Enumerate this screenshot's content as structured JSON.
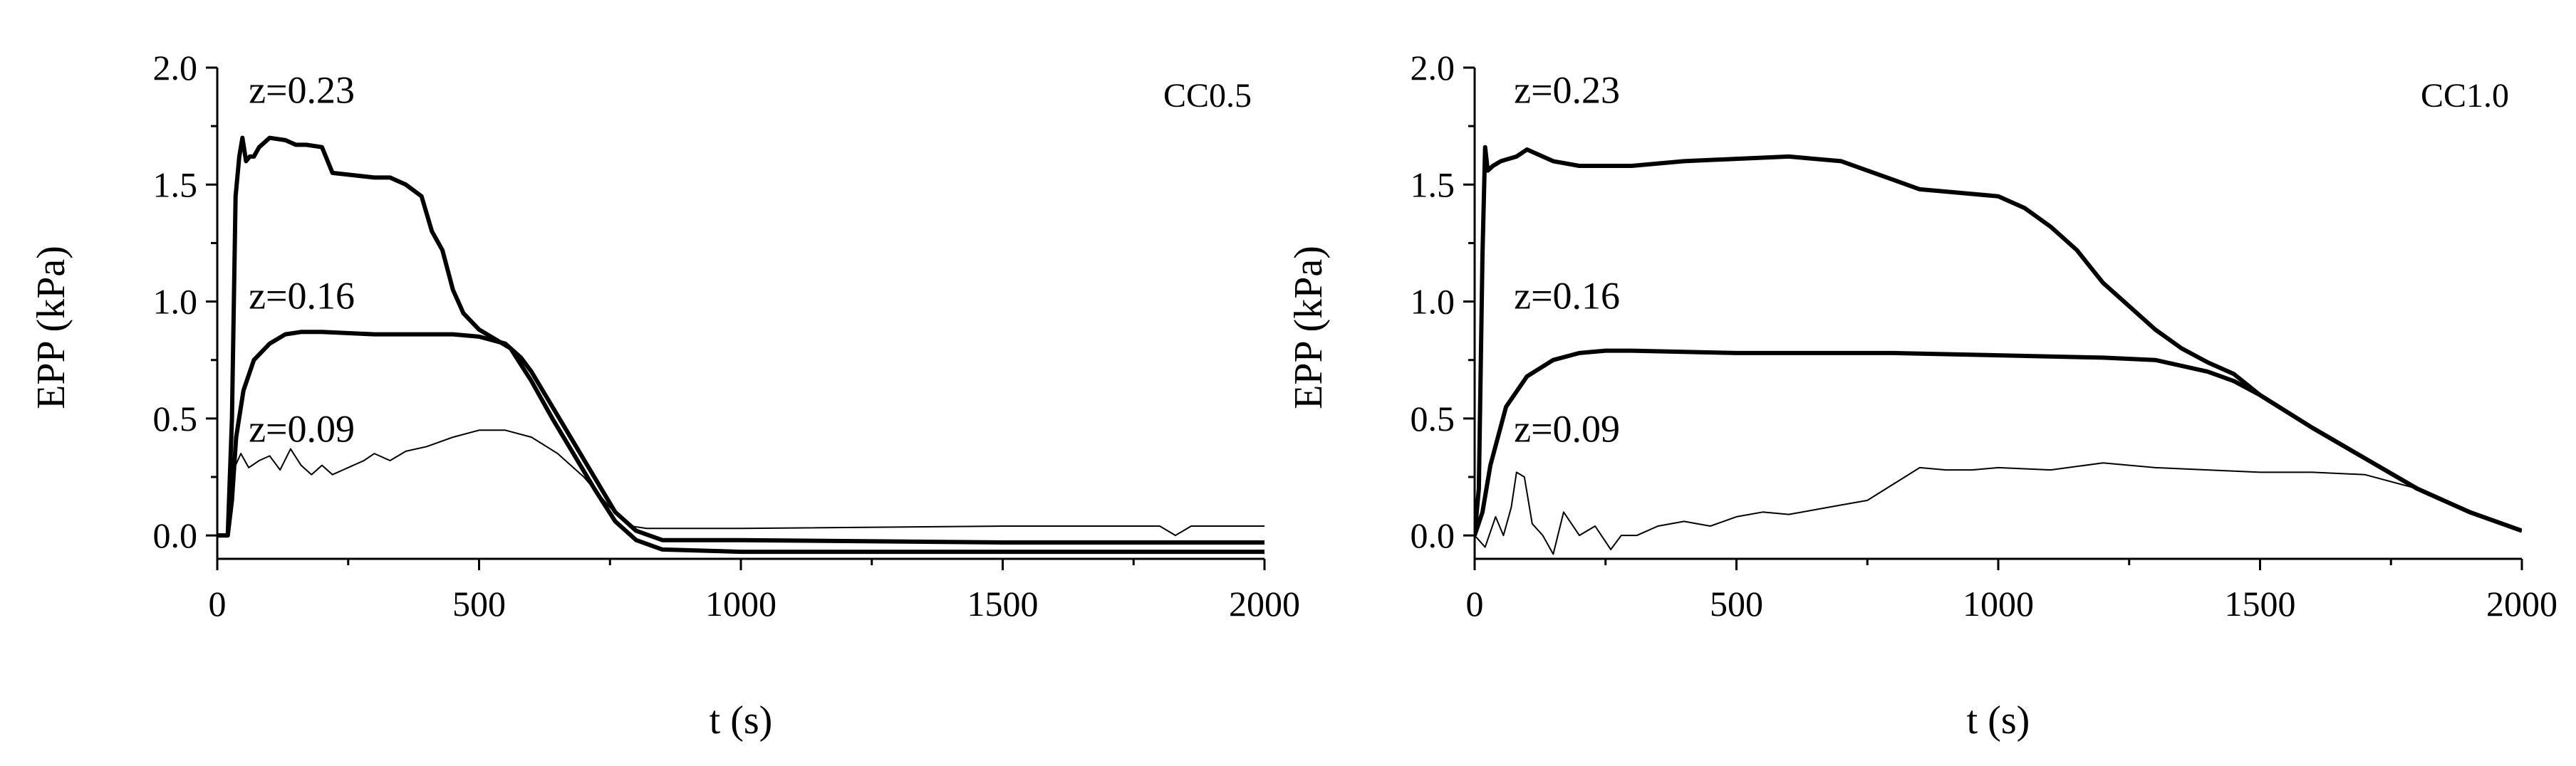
{
  "chart_data": [
    {
      "type": "line",
      "panel_label": "CC0.5",
      "xlabel": "t (s)",
      "ylabel": "EPP (kPa)",
      "xlim": [
        0,
        2000
      ],
      "ylim": [
        -0.1,
        2.0
      ],
      "xticks": [
        0,
        500,
        1000,
        1500,
        2000
      ],
      "xtick_labels": [
        "0",
        "500",
        "1000",
        "1500",
        "2000"
      ],
      "yticks": [
        0,
        0.5,
        1.0,
        1.5,
        2.0
      ],
      "ytick_labels": [
        "0.0",
        "0.5",
        "1.0",
        "1.5",
        "2.0"
      ],
      "grid": false,
      "series": [
        {
          "name": "z=0.23",
          "label_at": [
            60,
            1.85
          ],
          "points": [
            [
              0,
              0.0
            ],
            [
              20,
              0.0
            ],
            [
              28,
              0.5
            ],
            [
              35,
              1.45
            ],
            [
              42,
              1.62
            ],
            [
              48,
              1.7
            ],
            [
              55,
              1.6
            ],
            [
              62,
              1.62
            ],
            [
              70,
              1.62
            ],
            [
              80,
              1.66
            ],
            [
              100,
              1.7
            ],
            [
              130,
              1.69
            ],
            [
              150,
              1.67
            ],
            [
              170,
              1.67
            ],
            [
              200,
              1.66
            ],
            [
              220,
              1.55
            ],
            [
              260,
              1.54
            ],
            [
              300,
              1.53
            ],
            [
              330,
              1.53
            ],
            [
              360,
              1.5
            ],
            [
              390,
              1.45
            ],
            [
              410,
              1.3
            ],
            [
              430,
              1.22
            ],
            [
              450,
              1.05
            ],
            [
              470,
              0.95
            ],
            [
              500,
              0.88
            ],
            [
              530,
              0.84
            ],
            [
              560,
              0.8
            ],
            [
              600,
              0.66
            ],
            [
              640,
              0.5
            ],
            [
              680,
              0.35
            ],
            [
              720,
              0.2
            ],
            [
              760,
              0.06
            ],
            [
              800,
              -0.02
            ],
            [
              850,
              -0.06
            ],
            [
              1000,
              -0.07
            ],
            [
              1500,
              -0.07
            ],
            [
              2000,
              -0.07
            ]
          ]
        },
        {
          "name": "z=0.16",
          "label_at": [
            60,
            0.97
          ],
          "points": [
            [
              0,
              0.0
            ],
            [
              20,
              0.0
            ],
            [
              28,
              0.15
            ],
            [
              36,
              0.42
            ],
            [
              50,
              0.62
            ],
            [
              70,
              0.75
            ],
            [
              100,
              0.82
            ],
            [
              130,
              0.86
            ],
            [
              160,
              0.87
            ],
            [
              200,
              0.87
            ],
            [
              300,
              0.86
            ],
            [
              400,
              0.86
            ],
            [
              450,
              0.86
            ],
            [
              500,
              0.85
            ],
            [
              550,
              0.82
            ],
            [
              580,
              0.76
            ],
            [
              600,
              0.7
            ],
            [
              640,
              0.55
            ],
            [
              680,
              0.4
            ],
            [
              720,
              0.25
            ],
            [
              760,
              0.1
            ],
            [
              800,
              0.02
            ],
            [
              850,
              -0.02
            ],
            [
              1000,
              -0.02
            ],
            [
              1500,
              -0.03
            ],
            [
              2000,
              -0.03
            ]
          ]
        },
        {
          "name": "z=0.09",
          "label_at": [
            60,
            0.4
          ],
          "thin": true,
          "points": [
            [
              0,
              0.0
            ],
            [
              20,
              0.0
            ],
            [
              28,
              0.2
            ],
            [
              35,
              0.3
            ],
            [
              45,
              0.35
            ],
            [
              60,
              0.29
            ],
            [
              80,
              0.32
            ],
            [
              100,
              0.34
            ],
            [
              120,
              0.28
            ],
            [
              140,
              0.37
            ],
            [
              160,
              0.3
            ],
            [
              180,
              0.26
            ],
            [
              200,
              0.3
            ],
            [
              220,
              0.26
            ],
            [
              240,
              0.28
            ],
            [
              260,
              0.3
            ],
            [
              280,
              0.32
            ],
            [
              300,
              0.35
            ],
            [
              330,
              0.32
            ],
            [
              360,
              0.36
            ],
            [
              400,
              0.38
            ],
            [
              450,
              0.42
            ],
            [
              500,
              0.45
            ],
            [
              550,
              0.45
            ],
            [
              600,
              0.42
            ],
            [
              650,
              0.35
            ],
            [
              700,
              0.25
            ],
            [
              750,
              0.12
            ],
            [
              790,
              0.04
            ],
            [
              820,
              0.03
            ],
            [
              1000,
              0.03
            ],
            [
              1500,
              0.04
            ],
            [
              1800,
              0.04
            ],
            [
              1830,
              0.0
            ],
            [
              1860,
              0.04
            ],
            [
              2000,
              0.04
            ]
          ]
        }
      ]
    },
    {
      "type": "line",
      "panel_label": "CC1.0",
      "xlabel": "t (s)",
      "ylabel": "EPP (kPa)",
      "xlim": [
        0,
        2000
      ],
      "ylim": [
        -0.1,
        2.0
      ],
      "xticks": [
        0,
        500,
        1000,
        1500,
        2000
      ],
      "xtick_labels": [
        "0",
        "500",
        "1000",
        "1500",
        "2000"
      ],
      "yticks": [
        0,
        0.5,
        1.0,
        1.5,
        2.0
      ],
      "ytick_labels": [
        "0.0",
        "0.5",
        "1.0",
        "1.5",
        "2.0"
      ],
      "grid": false,
      "series": [
        {
          "name": "z=0.23",
          "label_at": [
            75,
            1.85
          ],
          "points": [
            [
              0,
              0.0
            ],
            [
              8,
              0.2
            ],
            [
              15,
              1.2
            ],
            [
              20,
              1.66
            ],
            [
              25,
              1.56
            ],
            [
              35,
              1.58
            ],
            [
              50,
              1.6
            ],
            [
              80,
              1.62
            ],
            [
              100,
              1.65
            ],
            [
              150,
              1.6
            ],
            [
              200,
              1.58
            ],
            [
              300,
              1.58
            ],
            [
              400,
              1.6
            ],
            [
              500,
              1.61
            ],
            [
              600,
              1.62
            ],
            [
              700,
              1.6
            ],
            [
              800,
              1.52
            ],
            [
              850,
              1.48
            ],
            [
              900,
              1.47
            ],
            [
              1000,
              1.45
            ],
            [
              1050,
              1.4
            ],
            [
              1100,
              1.32
            ],
            [
              1150,
              1.22
            ],
            [
              1200,
              1.08
            ],
            [
              1250,
              0.98
            ],
            [
              1300,
              0.88
            ],
            [
              1350,
              0.8
            ],
            [
              1400,
              0.74
            ],
            [
              1450,
              0.69
            ],
            [
              1500,
              0.6
            ],
            [
              1600,
              0.46
            ],
            [
              1700,
              0.33
            ],
            [
              1800,
              0.2
            ],
            [
              1900,
              0.1
            ],
            [
              2000,
              0.02
            ]
          ]
        },
        {
          "name": "z=0.16",
          "label_at": [
            75,
            0.97
          ],
          "points": [
            [
              0,
              0.0
            ],
            [
              15,
              0.1
            ],
            [
              30,
              0.3
            ],
            [
              60,
              0.55
            ],
            [
              100,
              0.68
            ],
            [
              150,
              0.75
            ],
            [
              200,
              0.78
            ],
            [
              250,
              0.79
            ],
            [
              300,
              0.79
            ],
            [
              500,
              0.78
            ],
            [
              800,
              0.78
            ],
            [
              1000,
              0.77
            ],
            [
              1200,
              0.76
            ],
            [
              1300,
              0.75
            ],
            [
              1400,
              0.7
            ],
            [
              1450,
              0.66
            ],
            [
              1500,
              0.6
            ],
            [
              1600,
              0.46
            ],
            [
              1700,
              0.33
            ],
            [
              1800,
              0.2
            ],
            [
              1900,
              0.1
            ],
            [
              2000,
              0.02
            ]
          ]
        },
        {
          "name": "z=0.09",
          "label_at": [
            75,
            0.4
          ],
          "thin": true,
          "points": [
            [
              0,
              0.0
            ],
            [
              20,
              -0.05
            ],
            [
              40,
              0.08
            ],
            [
              55,
              0.0
            ],
            [
              70,
              0.12
            ],
            [
              80,
              0.27
            ],
            [
              95,
              0.25
            ],
            [
              110,
              0.05
            ],
            [
              130,
              0.0
            ],
            [
              150,
              -0.08
            ],
            [
              170,
              0.1
            ],
            [
              200,
              0.0
            ],
            [
              230,
              0.04
            ],
            [
              260,
              -0.06
            ],
            [
              280,
              0.0
            ],
            [
              310,
              0.0
            ],
            [
              350,
              0.04
            ],
            [
              400,
              0.06
            ],
            [
              450,
              0.04
            ],
            [
              500,
              0.08
            ],
            [
              550,
              0.1
            ],
            [
              600,
              0.09
            ],
            [
              650,
              0.11
            ],
            [
              700,
              0.13
            ],
            [
              750,
              0.15
            ],
            [
              800,
              0.22
            ],
            [
              850,
              0.29
            ],
            [
              900,
              0.28
            ],
            [
              950,
              0.28
            ],
            [
              1000,
              0.29
            ],
            [
              1100,
              0.28
            ],
            [
              1200,
              0.31
            ],
            [
              1300,
              0.29
            ],
            [
              1400,
              0.28
            ],
            [
              1500,
              0.27
            ],
            [
              1600,
              0.27
            ],
            [
              1700,
              0.26
            ],
            [
              1800,
              0.2
            ]
          ]
        }
      ]
    }
  ]
}
